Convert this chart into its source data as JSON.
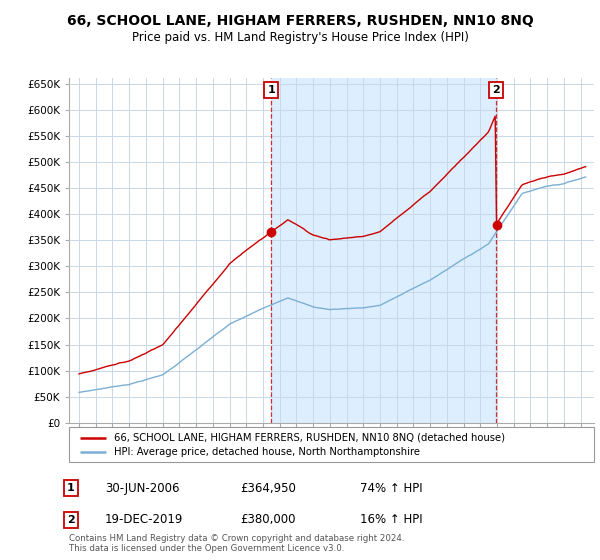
{
  "title": "66, SCHOOL LANE, HIGHAM FERRERS, RUSHDEN, NN10 8NQ",
  "subtitle": "Price paid vs. HM Land Registry's House Price Index (HPI)",
  "legend_line1": "66, SCHOOL LANE, HIGHAM FERRERS, RUSHDEN, NN10 8NQ (detached house)",
  "legend_line2": "HPI: Average price, detached house, North Northamptonshire",
  "transaction1_date": "30-JUN-2006",
  "transaction1_price": "£364,950",
  "transaction1_hpi": "74% ↑ HPI",
  "transaction2_date": "19-DEC-2019",
  "transaction2_price": "£380,000",
  "transaction2_hpi": "16% ↑ HPI",
  "footer": "Contains HM Land Registry data © Crown copyright and database right 2024.\nThis data is licensed under the Open Government Licence v3.0.",
  "red_color": "#cc0000",
  "blue_color": "#7bafd4",
  "shade_color": "#ddeeff",
  "background_color": "#ffffff",
  "grid_color": "#c8d8e8",
  "yticks": [
    0,
    50000,
    100000,
    150000,
    200000,
    250000,
    300000,
    350000,
    400000,
    450000,
    500000,
    550000,
    600000,
    650000
  ],
  "transaction1_x": 2006.5,
  "transaction2_x": 2019.96
}
